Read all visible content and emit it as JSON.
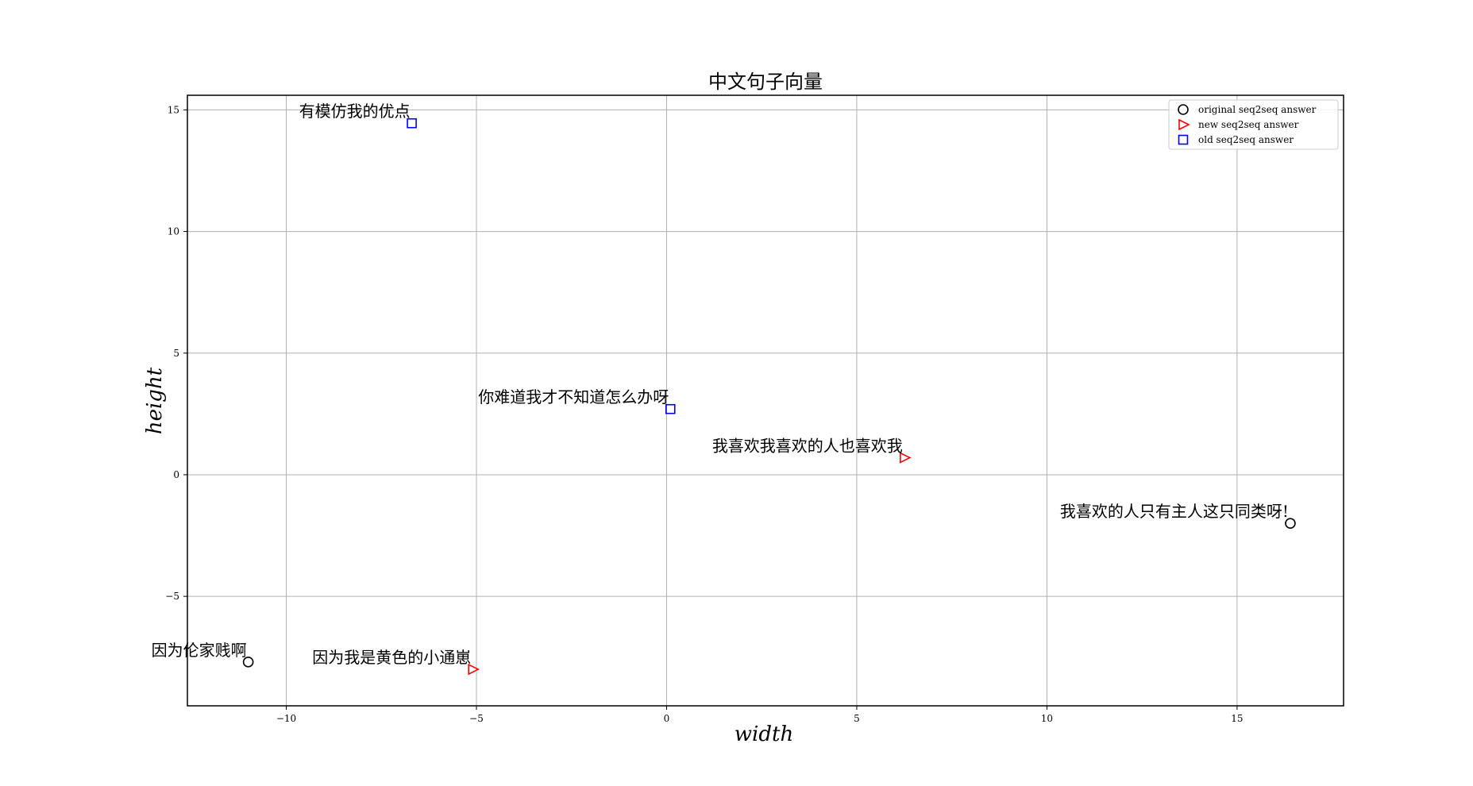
{
  "chart_data": {
    "type": "scatter",
    "title": "中文句子向量",
    "xlabel": "width",
    "ylabel": "height",
    "xlim": [
      -12.6,
      17.8
    ],
    "ylim": [
      -9.5,
      15.6
    ],
    "xticks": [
      -10,
      -5,
      0,
      5,
      10,
      15
    ],
    "yticks": [
      -5,
      0,
      5,
      10,
      15
    ],
    "xtick_labels": [
      "−10",
      "−5",
      "0",
      "5",
      "10",
      "15"
    ],
    "ytick_labels": [
      "−5",
      "0",
      "5",
      "10",
      "15"
    ],
    "grid": true,
    "legend_position": "top-right",
    "series": [
      {
        "name": "original seq2seq answer",
        "marker": "circle",
        "color": "#000000",
        "points": [
          {
            "x": -11.0,
            "y": -7.7,
            "label": "因为伦家贱啊"
          },
          {
            "x": 16.4,
            "y": -2.0,
            "label": "我喜欢的人只有主人这只同类呀!"
          }
        ]
      },
      {
        "name": "new seq2seq answer",
        "marker": "triangle-right",
        "color": "#ff0000",
        "points": [
          {
            "x": -5.1,
            "y": -8.0,
            "label": "因为我是黄色的小通崽"
          },
          {
            "x": 6.25,
            "y": 0.7,
            "label": "我喜欢我喜欢的人也喜欢我"
          }
        ]
      },
      {
        "name": "old seq2seq answer",
        "marker": "square",
        "color": "#0000ff",
        "points": [
          {
            "x": -6.7,
            "y": 14.45,
            "label": "有模仿我的优点"
          },
          {
            "x": 0.1,
            "y": 2.7,
            "label": "你难道我才不知道怎么办呀"
          }
        ]
      }
    ]
  }
}
